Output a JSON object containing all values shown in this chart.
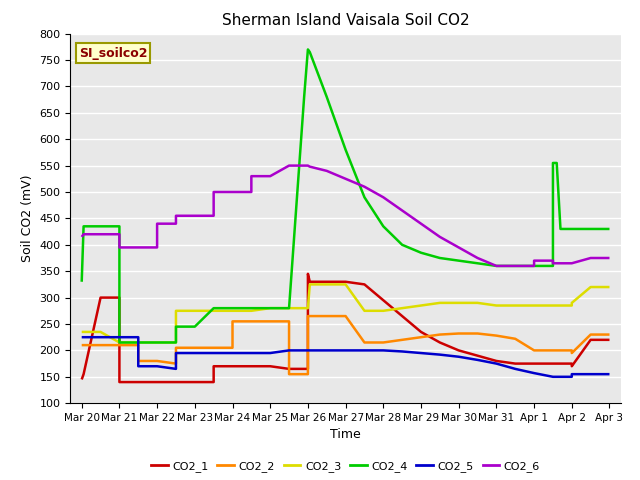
{
  "title": "Sherman Island Vaisala Soil CO2",
  "xlabel": "Time",
  "ylabel": "Soil CO2 (mV)",
  "ylim": [
    100,
    800
  ],
  "yticks": [
    100,
    150,
    200,
    250,
    300,
    350,
    400,
    450,
    500,
    550,
    600,
    650,
    700,
    750,
    800
  ],
  "x_labels": [
    "Mar 20",
    "Mar 21",
    "Mar 22",
    "Mar 23",
    "Mar 24",
    "Mar 25",
    "Mar 26",
    "Mar 27",
    "Mar 28",
    "Mar 29",
    "Mar 30",
    "Mar 31",
    "Apr 1",
    "Apr 2",
    "Apr 3"
  ],
  "x_ticks": [
    0,
    1,
    2,
    3,
    4,
    5,
    6,
    7,
    8,
    9,
    10,
    11,
    12,
    13,
    14
  ],
  "plot_bg": "#e8e8e8",
  "fig_bg": "#ffffff",
  "legend_label": "SI_soilco2",
  "legend_label_color": "#8b0000",
  "legend_box_fc": "#ffffcc",
  "legend_box_ec": "#999900",
  "series": {
    "CO2_1": {
      "color": "#cc0000",
      "x": [
        0,
        0.05,
        0.5,
        1.0,
        1.0,
        1.5,
        2.0,
        2.5,
        3.0,
        3.5,
        3.5,
        4.0,
        4.5,
        5.0,
        5.5,
        6.0,
        6.0,
        6.05,
        6.5,
        7.0,
        7.5,
        8.0,
        8.5,
        9.0,
        9.5,
        10.0,
        10.5,
        11.0,
        11.5,
        12.0,
        12.5,
        13.0,
        13.0,
        13.5,
        14.0
      ],
      "y": [
        145,
        155,
        300,
        300,
        140,
        140,
        140,
        140,
        140,
        140,
        170,
        170,
        170,
        170,
        165,
        165,
        345,
        330,
        330,
        330,
        325,
        295,
        265,
        235,
        215,
        200,
        190,
        180,
        175,
        175,
        175,
        175,
        170,
        220,
        220
      ]
    },
    "CO2_2": {
      "color": "#ff8800",
      "x": [
        0,
        0.5,
        0.5,
        1.0,
        1.5,
        1.5,
        2.0,
        2.5,
        2.5,
        3.0,
        3.5,
        4.0,
        4.0,
        4.5,
        5.0,
        5.5,
        5.5,
        6.0,
        6.0,
        6.05,
        6.5,
        7.0,
        7.5,
        8.0,
        8.5,
        9.0,
        9.5,
        10.0,
        10.5,
        11.0,
        11.5,
        12.0,
        12.5,
        13.0,
        13.0,
        13.5,
        14.0
      ],
      "y": [
        210,
        210,
        210,
        210,
        210,
        180,
        180,
        175,
        205,
        205,
        205,
        205,
        255,
        255,
        255,
        255,
        155,
        155,
        265,
        265,
        265,
        265,
        215,
        215,
        220,
        225,
        230,
        232,
        232,
        228,
        222,
        200,
        200,
        200,
        195,
        230,
        230
      ]
    },
    "CO2_3": {
      "color": "#dddd00",
      "x": [
        0,
        0.5,
        1.0,
        1.5,
        2.0,
        2.5,
        2.5,
        3.0,
        3.5,
        4.0,
        4.5,
        5.0,
        5.5,
        6.0,
        6.05,
        6.5,
        7.0,
        7.5,
        8.0,
        8.5,
        9.0,
        9.5,
        10.0,
        10.5,
        11.0,
        11.5,
        12.0,
        12.5,
        13.0,
        13.0,
        13.5,
        14.0
      ],
      "y": [
        235,
        235,
        215,
        215,
        215,
        215,
        275,
        275,
        275,
        275,
        275,
        280,
        280,
        280,
        325,
        325,
        325,
        275,
        275,
        280,
        285,
        290,
        290,
        290,
        285,
        285,
        285,
        285,
        285,
        290,
        320,
        320
      ]
    },
    "CO2_4": {
      "color": "#00cc00",
      "x": [
        0,
        0.05,
        0.5,
        1.0,
        1.0,
        1.5,
        2.0,
        2.5,
        2.5,
        3.0,
        3.5,
        4.0,
        4.5,
        5.0,
        5.5,
        5.9,
        6.0,
        6.05,
        6.5,
        7.0,
        7.5,
        8.0,
        8.5,
        9.0,
        9.5,
        10.0,
        10.5,
        11.0,
        11.5,
        12.0,
        12.5,
        12.5,
        12.6,
        12.7,
        13.0,
        13.5,
        14.0
      ],
      "y": [
        330,
        435,
        435,
        435,
        215,
        215,
        215,
        215,
        245,
        245,
        280,
        280,
        280,
        280,
        280,
        680,
        770,
        765,
        680,
        580,
        490,
        435,
        400,
        385,
        375,
        370,
        365,
        360,
        360,
        360,
        360,
        555,
        555,
        430,
        430,
        430,
        430
      ]
    },
    "CO2_5": {
      "color": "#0000cc",
      "x": [
        0,
        0.5,
        1.0,
        1.5,
        1.5,
        2.0,
        2.5,
        2.5,
        3.0,
        3.5,
        4.0,
        4.5,
        5.0,
        5.5,
        6.0,
        6.05,
        6.5,
        7.0,
        7.5,
        8.0,
        8.5,
        9.0,
        9.5,
        10.0,
        10.5,
        11.0,
        11.5,
        12.0,
        12.5,
        13.0,
        13.0,
        13.5,
        14.0
      ],
      "y": [
        225,
        225,
        225,
        225,
        170,
        170,
        165,
        195,
        195,
        195,
        195,
        195,
        195,
        200,
        200,
        200,
        200,
        200,
        200,
        200,
        198,
        195,
        192,
        188,
        182,
        175,
        165,
        157,
        150,
        150,
        155,
        155,
        155
      ]
    },
    "CO2_6": {
      "color": "#aa00cc",
      "x": [
        0,
        0.05,
        0.5,
        1.0,
        1.0,
        1.5,
        2.0,
        2.0,
        2.5,
        2.5,
        3.0,
        3.5,
        3.5,
        4.0,
        4.5,
        4.5,
        5.0,
        5.5,
        6.0,
        6.05,
        6.5,
        7.0,
        7.5,
        8.0,
        8.5,
        9.0,
        9.5,
        10.0,
        10.5,
        11.0,
        11.5,
        12.0,
        12.0,
        12.5,
        12.5,
        13.0,
        13.5,
        14.0
      ],
      "y": [
        415,
        420,
        420,
        420,
        395,
        395,
        395,
        440,
        440,
        455,
        455,
        455,
        500,
        500,
        500,
        530,
        530,
        550,
        550,
        548,
        540,
        525,
        510,
        490,
        465,
        440,
        415,
        395,
        375,
        360,
        360,
        360,
        370,
        370,
        365,
        365,
        375,
        375
      ]
    }
  }
}
